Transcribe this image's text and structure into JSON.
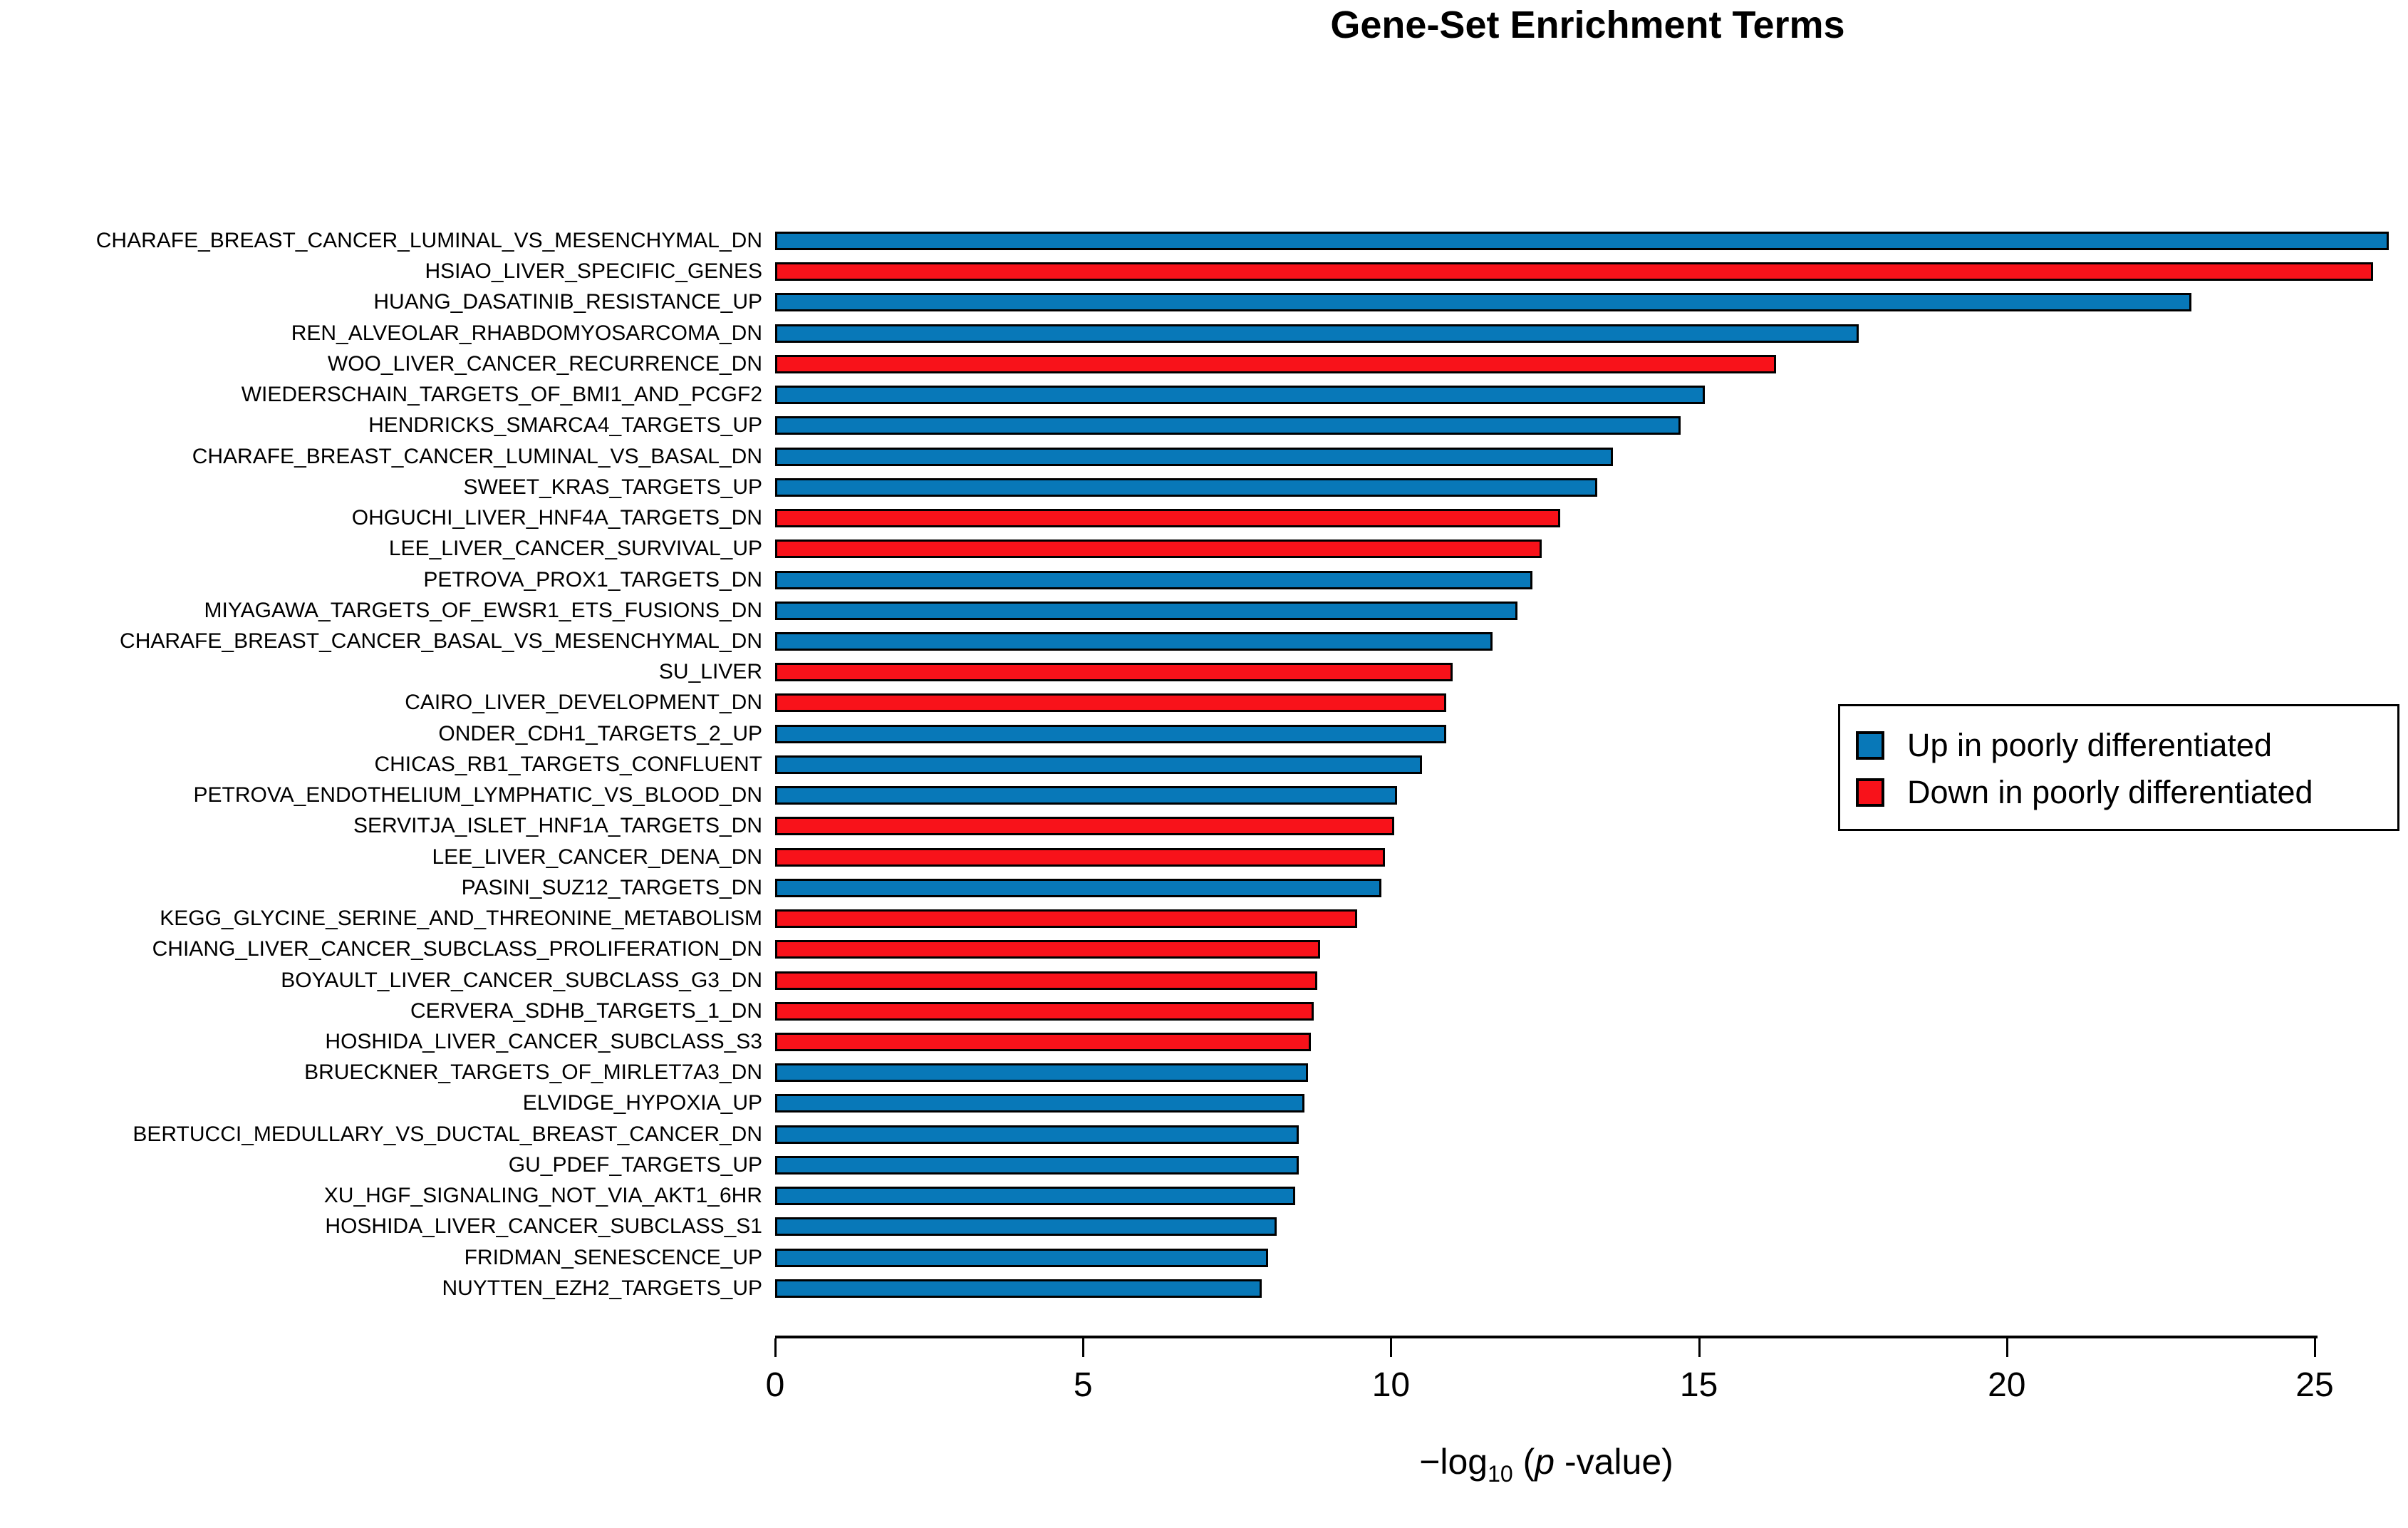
{
  "title": "Gene-Set Enrichment Terms",
  "colors": {
    "up": "#0878b8",
    "down": "#f8121a",
    "bar_border": "#000000",
    "axis": "#000000",
    "text": "#000000",
    "background": "#ffffff"
  },
  "legend": {
    "items": [
      {
        "label": "Up in poorly differentiated",
        "color": "#0878b8",
        "group": "up"
      },
      {
        "label": "Down in poorly differentiated",
        "color": "#f8121a",
        "group": "down"
      }
    ]
  },
  "axis": {
    "label": {
      "minus_log": "−log",
      "sub": "10",
      "open": " (",
      "p": "p",
      "rest": " -value)"
    }
  },
  "chart_data": {
    "type": "bar",
    "orientation": "horizontal",
    "title": "Gene-Set Enrichment Terms",
    "xlabel": "-log10(p-value)",
    "xlim": [
      0,
      26.5
    ],
    "x_ticks": [
      0,
      5,
      10,
      15,
      20,
      25
    ],
    "grid": false,
    "legend_position": "right",
    "categories": [
      "CHARAFE_BREAST_CANCER_LUMINAL_VS_MESENCHYMAL_DN",
      "HSIAO_LIVER_SPECIFIC_GENES",
      "HUANG_DASATINIB_RESISTANCE_UP",
      "REN_ALVEOLAR_RHABDOMYOSARCOMA_DN",
      "WOO_LIVER_CANCER_RECURRENCE_DN",
      "WIEDERSCHAIN_TARGETS_OF_BMI1_AND_PCGF2",
      "HENDRICKS_SMARCA4_TARGETS_UP",
      "CHARAFE_BREAST_CANCER_LUMINAL_VS_BASAL_DN",
      "SWEET_KRAS_TARGETS_UP",
      "OHGUCHI_LIVER_HNF4A_TARGETS_DN",
      "LEE_LIVER_CANCER_SURVIVAL_UP",
      "PETROVA_PROX1_TARGETS_DN",
      "MIYAGAWA_TARGETS_OF_EWSR1_ETS_FUSIONS_DN",
      "CHARAFE_BREAST_CANCER_BASAL_VS_MESENCHYMAL_DN",
      "SU_LIVER",
      "CAIRO_LIVER_DEVELOPMENT_DN",
      "ONDER_CDH1_TARGETS_2_UP",
      "CHICAS_RB1_TARGETS_CONFLUENT",
      "PETROVA_ENDOTHELIUM_LYMPHATIC_VS_BLOOD_DN",
      "SERVITJA_ISLET_HNF1A_TARGETS_DN",
      "LEE_LIVER_CANCER_DENA_DN",
      "PASINI_SUZ12_TARGETS_DN",
      "KEGG_GLYCINE_SERINE_AND_THREONINE_METABOLISM",
      "CHIANG_LIVER_CANCER_SUBCLASS_PROLIFERATION_DN",
      "BOYAULT_LIVER_CANCER_SUBCLASS_G3_DN",
      "CERVERA_SDHB_TARGETS_1_DN",
      "HOSHIDA_LIVER_CANCER_SUBCLASS_S3",
      "BRUECKNER_TARGETS_OF_MIRLET7A3_DN",
      "ELVIDGE_HYPOXIA_UP",
      "BERTUCCI_MEDULLARY_VS_DUCTAL_BREAST_CANCER_DN",
      "GU_PDEF_TARGETS_UP",
      "XU_HGF_SIGNALING_NOT_VIA_AKT1_6HR",
      "HOSHIDA_LIVER_CANCER_SUBCLASS_S1",
      "FRIDMAN_SENESCENCE_UP",
      "NUYTTEN_EZH2_TARGETS_UP"
    ],
    "values": [
      26.2,
      25.95,
      23.0,
      17.6,
      16.25,
      15.1,
      14.7,
      13.6,
      13.35,
      12.75,
      12.45,
      12.3,
      12.05,
      11.65,
      11.0,
      10.9,
      10.9,
      10.5,
      10.1,
      10.05,
      9.9,
      9.85,
      9.45,
      8.85,
      8.8,
      8.75,
      8.7,
      8.65,
      8.6,
      8.5,
      8.5,
      8.45,
      8.15,
      8.0,
      7.9
    ],
    "groups": [
      "up",
      "down",
      "up",
      "up",
      "down",
      "up",
      "up",
      "up",
      "up",
      "down",
      "down",
      "up",
      "up",
      "up",
      "down",
      "down",
      "up",
      "up",
      "up",
      "down",
      "down",
      "up",
      "down",
      "down",
      "down",
      "down",
      "down",
      "up",
      "up",
      "up",
      "up",
      "up",
      "up",
      "up",
      "up"
    ]
  }
}
